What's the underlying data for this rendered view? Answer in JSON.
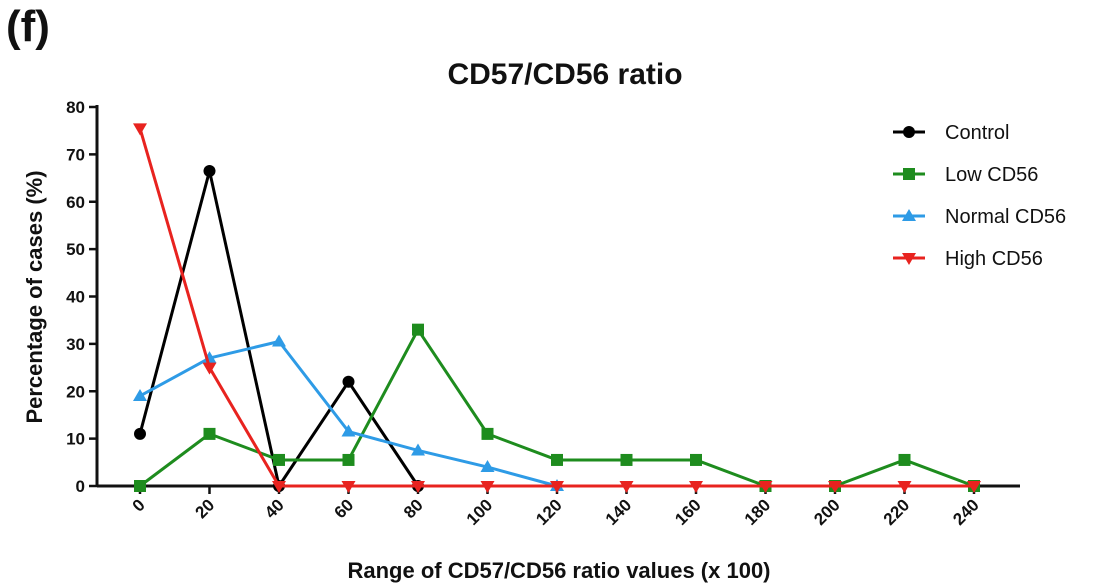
{
  "panel_label": "(f)",
  "chart_data": {
    "type": "line",
    "title": "CD57/CD56 ratio",
    "xlabel": "Range of CD57/CD56 ratio values (x 100)",
    "ylabel": "Percentage of cases (%)",
    "x": [
      0,
      20,
      40,
      60,
      80,
      100,
      120,
      140,
      160,
      180,
      200,
      220,
      240
    ],
    "xlim": [
      0,
      240
    ],
    "ylim": [
      0,
      80
    ],
    "yticks": [
      0,
      10,
      20,
      30,
      40,
      50,
      60,
      70,
      80
    ],
    "grid": false,
    "legend_position": "top-right",
    "series": [
      {
        "name": "Control",
        "color": "#000000",
        "marker": "circle",
        "values": [
          11,
          66.5,
          0,
          22,
          0,
          null,
          null,
          null,
          null,
          null,
          null,
          null,
          null
        ]
      },
      {
        "name": "Low CD56",
        "color": "#1e8c1e",
        "marker": "square",
        "values": [
          0,
          11,
          5.5,
          5.5,
          33,
          11,
          5.5,
          5.5,
          5.5,
          0,
          0,
          5.5,
          0
        ]
      },
      {
        "name": "Normal CD56",
        "color": "#2e9be6",
        "marker": "triangle-up",
        "values": [
          19,
          27,
          30.5,
          11.5,
          7.5,
          4,
          0,
          null,
          null,
          null,
          null,
          null,
          null
        ]
      },
      {
        "name": "High CD56",
        "color": "#e8231f",
        "marker": "triangle-down",
        "values": [
          75.5,
          25,
          0,
          0,
          0,
          0,
          0,
          0,
          0,
          0,
          0,
          0,
          0
        ]
      }
    ]
  }
}
